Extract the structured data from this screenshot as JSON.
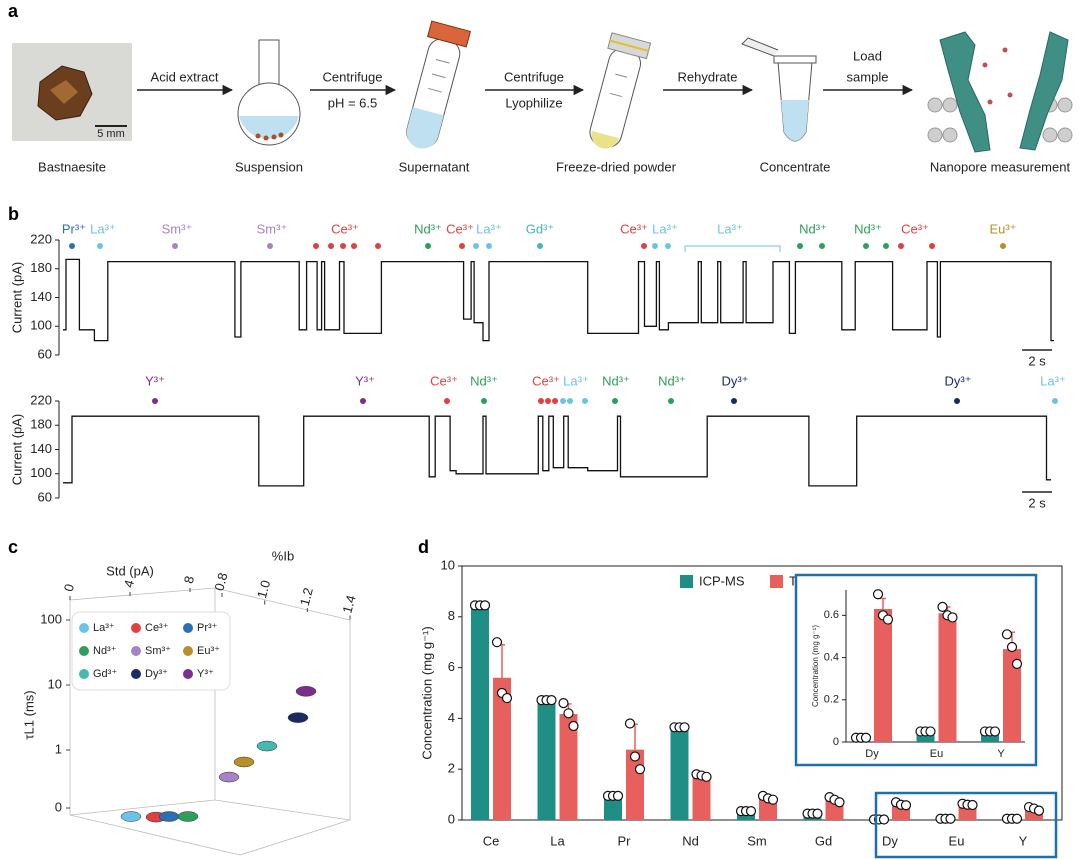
{
  "panel_labels": [
    "a",
    "b",
    "c",
    "d"
  ],
  "workflow": {
    "steps": [
      "Bastnaesite",
      "Suspension",
      "Supernatant",
      "Freeze-dried powder",
      "Concentrate",
      "Nanopore measurement"
    ],
    "arrows": [
      [
        "Acid extract"
      ],
      [
        "Centrifuge",
        "pH = 6.5"
      ],
      [
        "Centrifuge",
        "Lyophilize"
      ],
      [
        "Rehydrate"
      ],
      [
        "Load",
        "sample"
      ]
    ],
    "scale_bar": "5 mm"
  },
  "chart_data": [
    {
      "type": "line",
      "step": true,
      "ylabel": "Current (pA)",
      "ylim": [
        60,
        220
      ],
      "yticks": [
        60,
        100,
        140,
        180,
        220
      ],
      "xlim": [
        0,
        66.5
      ],
      "scale_bar": {
        "value": 2,
        "label": "2 s"
      },
      "color": "#111111",
      "x": [
        0,
        0.2,
        1.1,
        2.1,
        3.0,
        11.5,
        11.9,
        15.8,
        16.3,
        17.0,
        17.3,
        17.5,
        18.5,
        18.8,
        21.3,
        26.8,
        27.3,
        27.5,
        28.1,
        28.5,
        35.1,
        38.5,
        38.9,
        39.7,
        39.9,
        40.5,
        42.5,
        42.7,
        43.8,
        44.0,
        45.5,
        45.7,
        47.5,
        48.6,
        49.0,
        52.1,
        53.0,
        55.5,
        57.8,
        58.5,
        58.7,
        66.1,
        66.3
      ],
      "values": [
        95,
        193,
        95,
        80,
        190,
        85,
        190,
        95,
        190,
        95,
        190,
        95,
        190,
        90,
        190,
        110,
        190,
        105,
        80,
        190,
        90,
        190,
        100,
        190,
        95,
        105,
        190,
        105,
        190,
        105,
        190,
        105,
        190,
        90,
        190,
        95,
        190,
        95,
        190,
        85,
        190,
        80,
        80
      ],
      "annotations": [
        {
          "text": "Pr³⁺",
          "color": "#2c6fb5"
        },
        {
          "text": "La³⁺",
          "color": "#6cc3e8"
        },
        {
          "text": "Sm³⁺",
          "color": "#a583c5"
        },
        {
          "text": "Sm³⁺",
          "color": "#a583c5"
        },
        {
          "text": "Ce³⁺",
          "color": "#e0413f"
        },
        {
          "text": "Nd³⁺",
          "color": "#2e9e5b"
        },
        {
          "text": "Ce³⁺",
          "color": "#e0413f"
        },
        {
          "text": "La³⁺",
          "color": "#6cc3e8"
        },
        {
          "text": "Gd³⁺",
          "color": "#46b8b0"
        },
        {
          "text": "Ce³⁺",
          "color": "#e0413f"
        },
        {
          "text": "La³⁺",
          "color": "#6cc3e8"
        },
        {
          "text": "La³⁺",
          "color": "#6cc3e8"
        },
        {
          "text": "Nd³⁺",
          "color": "#2e9e5b"
        },
        {
          "text": "Nd³⁺",
          "color": "#2e9e5b"
        },
        {
          "text": "Ce³⁺",
          "color": "#e0413f"
        },
        {
          "text": "Eu³⁺",
          "color": "#b8902a"
        }
      ]
    },
    {
      "type": "line",
      "step": true,
      "ylabel": "Current (pA)",
      "ylim": [
        60,
        220
      ],
      "yticks": [
        60,
        100,
        140,
        180,
        220
      ],
      "xlim": [
        0,
        66.5
      ],
      "scale_bar": {
        "value": 2,
        "label": "2 s"
      },
      "color": "#111111",
      "x": [
        0,
        0.6,
        13.1,
        16.1,
        24.5,
        24.9,
        25.9,
        26.3,
        28.1,
        28.3,
        31.8,
        32.1,
        32.5,
        32.8,
        33.5,
        33.8,
        35.1,
        37.1,
        37.3,
        43.1,
        49.9,
        53.1,
        65.8,
        66.1
      ],
      "values": [
        85,
        195,
        80,
        195,
        95,
        195,
        105,
        100,
        195,
        100,
        195,
        105,
        195,
        110,
        195,
        110,
        105,
        195,
        95,
        195,
        80,
        195,
        90,
        90
      ],
      "annotations": [
        {
          "text": "Y³⁺",
          "color": "#7b2e8c"
        },
        {
          "text": "Y³⁺",
          "color": "#7b2e8c"
        },
        {
          "text": "Ce³⁺",
          "color": "#e0413f"
        },
        {
          "text": "Nd³⁺",
          "color": "#2e9e5b"
        },
        {
          "text": "Ce³⁺",
          "color": "#e0413f"
        },
        {
          "text": "La³⁺",
          "color": "#6cc3e8"
        },
        {
          "text": "Nd³⁺",
          "color": "#2e9e5b"
        },
        {
          "text": "Nd³⁺",
          "color": "#2e9e5b"
        },
        {
          "text": "Dy³⁺",
          "color": "#1b2a63"
        },
        {
          "text": "Dy³⁺",
          "color": "#1b2a63"
        },
        {
          "text": "La³⁺",
          "color": "#6cc3e8"
        }
      ]
    },
    {
      "type": "scatter3d",
      "xlabel": "Std (pA)",
      "ylabel": "%Ib",
      "zlabel": "τL1 (ms)",
      "xlim": [
        0,
        10
      ],
      "xticks": [
        0,
        4,
        8
      ],
      "ylim": [
        0.6,
        1.4
      ],
      "yticks": [
        0.8,
        {
          "value": 1,
          "label": "1.0"
        },
        1.2,
        1.4
      ],
      "zlim": [
        0.1,
        100
      ],
      "zlog": true,
      "zticks": [
        0,
        1,
        10,
        100
      ],
      "series": [
        {
          "name": "La³⁺",
          "color": "#6cc3e8",
          "std": [
            2
          ],
          "ib": [
            0.85
          ],
          "tau": [
            0.1
          ]
        },
        {
          "name": "Ce³⁺",
          "color": "#e0413f",
          "std": [
            2.5
          ],
          "ib": [
            0.92
          ],
          "tau": [
            0.1
          ]
        },
        {
          "name": "Pr³⁺",
          "color": "#2c6fb5",
          "std": [
            3
          ],
          "ib": [
            0.95
          ],
          "tau": [
            0.1
          ]
        },
        {
          "name": "Nd³⁺",
          "color": "#2e9e5b",
          "std": [
            3.5
          ],
          "ib": [
            1.0
          ],
          "tau": [
            0.1
          ]
        },
        {
          "name": "Sm³⁺",
          "color": "#a583c5",
          "std": [
            3
          ],
          "ib": [
            1.15
          ],
          "tau": [
            0.5
          ]
        },
        {
          "name": "Eu³⁺",
          "color": "#b8902a",
          "std": [
            3
          ],
          "ib": [
            1.2
          ],
          "tau": [
            0.9
          ]
        },
        {
          "name": "Gd³⁺",
          "color": "#46b8b0",
          "std": [
            4
          ],
          "ib": [
            1.25
          ],
          "tau": [
            1.5
          ]
        },
        {
          "name": "Dy³⁺",
          "color": "#1b2a63",
          "std": [
            6
          ],
          "ib": [
            1.3
          ],
          "tau": [
            3.5
          ]
        },
        {
          "name": "Y³⁺",
          "color": "#7b2e8c",
          "std": [
            7
          ],
          "ib": [
            1.3
          ],
          "tau": [
            8
          ]
        }
      ]
    },
    {
      "type": "bar",
      "ylabel": "Concentration (mg g⁻¹)",
      "categories": [
        "Ce",
        "La",
        "Pr",
        "Nd",
        "Sm",
        "Gd",
        "Dy",
        "Eu",
        "Y"
      ],
      "ylim": [
        0,
        10
      ],
      "yticks": [
        0,
        2,
        4,
        6,
        8,
        10
      ],
      "series": [
        {
          "name": "ICP-MS",
          "color": "#1f8f86",
          "values": [
            8.45,
            4.72,
            0.95,
            3.65,
            0.35,
            0.25,
            0.02,
            0.05,
            0.05
          ],
          "points": [
            [
              8.45,
              8.45,
              8.45
            ],
            [
              4.72,
              4.72,
              4.72
            ],
            [
              0.95,
              0.95,
              0.95
            ],
            [
              3.65,
              3.65,
              3.65
            ],
            [
              0.35,
              0.35,
              0.35
            ],
            [
              0.25,
              0.25,
              0.25
            ],
            [
              0.02,
              0.02,
              0.02
            ],
            [
              0.05,
              0.05,
              0.05
            ],
            [
              0.05,
              0.05,
              0.05
            ]
          ]
        },
        {
          "name": "This work",
          "color": "#e8605e",
          "values": [
            5.6,
            4.17,
            2.77,
            1.75,
            0.87,
            0.8,
            0.63,
            0.61,
            0.44
          ],
          "errors": [
            1.3,
            0.4,
            1.0,
            0.08,
            0.08,
            0.1,
            0.05,
            0.03,
            0.08
          ],
          "points": [
            [
              7.0,
              5.0,
              4.8
            ],
            [
              4.6,
              4.2,
              3.7
            ],
            [
              3.8,
              2.5,
              2.0
            ],
            [
              1.8,
              1.75,
              1.7
            ],
            [
              0.95,
              0.85,
              0.8
            ],
            [
              0.9,
              0.8,
              0.7
            ],
            [
              0.7,
              0.6,
              0.58
            ],
            [
              0.64,
              0.6,
              0.59
            ],
            [
              0.51,
              0.45,
              0.37
            ]
          ]
        }
      ]
    },
    {
      "type": "bar",
      "ylabel": "Concentration (mg g⁻¹)",
      "categories": [
        "Dy",
        "Eu",
        "Y"
      ],
      "ylim": [
        0,
        0.72
      ],
      "yticks": [
        0,
        0.2,
        0.4,
        0.6
      ],
      "series": [
        {
          "name": "ICP-MS",
          "color": "#1f8f86",
          "values": [
            0.02,
            0.05,
            0.05
          ],
          "points": [
            [
              0.02,
              0.02,
              0.02
            ],
            [
              0.05,
              0.05,
              0.05
            ],
            [
              0.05,
              0.05,
              0.05
            ]
          ]
        },
        {
          "name": "This work",
          "color": "#e8605e",
          "values": [
            0.63,
            0.61,
            0.44
          ],
          "errors": [
            0.05,
            0.03,
            0.08
          ],
          "points": [
            [
              0.7,
              0.6,
              0.58
            ],
            [
              0.64,
              0.6,
              0.59
            ],
            [
              0.51,
              0.45,
              0.37
            ]
          ]
        }
      ]
    }
  ]
}
